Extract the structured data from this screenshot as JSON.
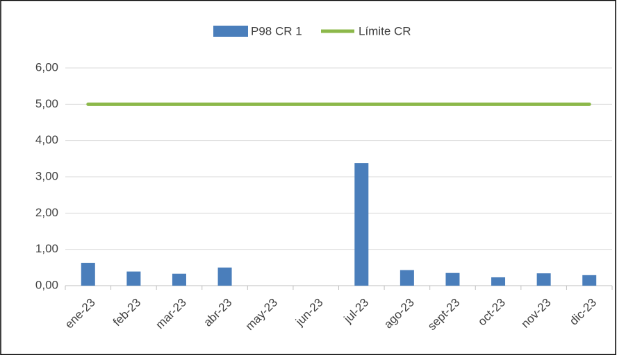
{
  "chart_data": {
    "type": "bar",
    "categories": [
      "ene-23",
      "feb-23",
      "mar-23",
      "abr-23",
      "may-23",
      "jun-23",
      "jul-23",
      "ago-23",
      "sept-23",
      "oct-23",
      "nov-23",
      "dic-23"
    ],
    "series": [
      {
        "name": "P98 CR 1",
        "type": "bar",
        "color": "#4a7ebb",
        "values": [
          0.63,
          0.39,
          0.33,
          0.5,
          null,
          null,
          3.38,
          0.43,
          0.35,
          0.23,
          0.34,
          0.29
        ]
      },
      {
        "name": "Límite CR",
        "type": "line",
        "color": "#8cb84a",
        "values": [
          5,
          5,
          5,
          5,
          5,
          5,
          5,
          5,
          5,
          5,
          5,
          5
        ]
      }
    ],
    "ylim": [
      0,
      6
    ],
    "yticks": [
      {
        "value": 0,
        "label": "0,00"
      },
      {
        "value": 1,
        "label": "1,00"
      },
      {
        "value": 2,
        "label": "2,00"
      },
      {
        "value": 3,
        "label": "3,00"
      },
      {
        "value": 4,
        "label": "4,00"
      },
      {
        "value": 5,
        "label": "5,00"
      },
      {
        "value": 6,
        "label": "6,00"
      }
    ],
    "grid": true,
    "legend": "top"
  }
}
